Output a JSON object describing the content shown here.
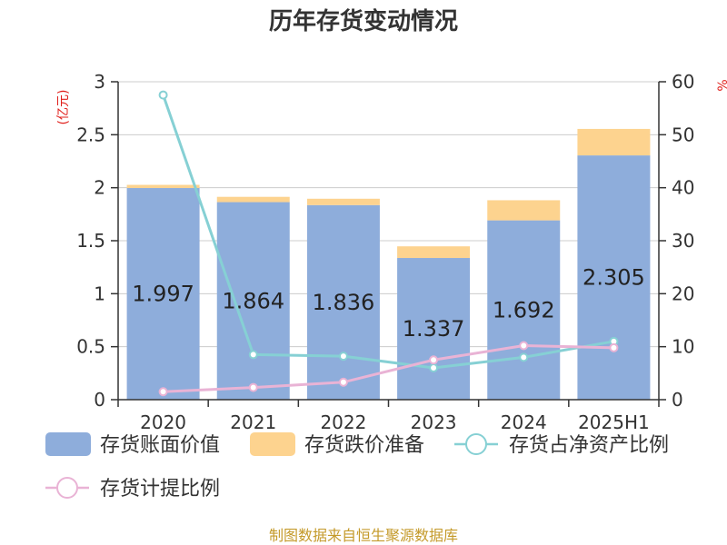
{
  "chart_data": {
    "type": "bar",
    "title": "历年存货变动情况",
    "categories": [
      "2020",
      "2021",
      "2022",
      "2023",
      "2024",
      "2025H1"
    ],
    "left_axis": {
      "unit": "(亿元)",
      "ylim": [
        0,
        3
      ],
      "ticks": [
        "0",
        "0.5",
        "1",
        "1.5",
        "2",
        "2.5",
        "3"
      ]
    },
    "right_axis": {
      "unit": "%",
      "ylim": [
        0,
        60
      ],
      "ticks": [
        "0",
        "10",
        "20",
        "30",
        "40",
        "50",
        "60"
      ]
    },
    "series": [
      {
        "name": "存货账面价值",
        "kind": "bar",
        "stack": "inventory",
        "axis": "left",
        "color": "#8eaddb",
        "values": [
          1.997,
          1.864,
          1.836,
          1.337,
          1.692,
          2.305
        ],
        "labels": [
          "1.997",
          "1.864",
          "1.836",
          "1.337",
          "1.692",
          "2.305"
        ]
      },
      {
        "name": "存货跌价准备",
        "kind": "bar",
        "stack": "inventory",
        "axis": "left",
        "color": "#fdd38f",
        "values": [
          0.03,
          0.05,
          0.06,
          0.11,
          0.19,
          0.25
        ]
      },
      {
        "name": "存货占净资产比例",
        "kind": "line",
        "axis": "right",
        "color": "#86d0d4",
        "values": [
          57.5,
          8.5,
          8.2,
          6.0,
          8.0,
          11.0
        ]
      },
      {
        "name": "存货计提比例",
        "kind": "line",
        "axis": "right",
        "color": "#e9b3d5",
        "values": [
          1.5,
          2.3,
          3.3,
          7.5,
          10.2,
          9.8
        ]
      }
    ],
    "grid": true,
    "legend": "bottom"
  },
  "footer": {
    "source": "制图数据来自恒生聚源数据库"
  }
}
